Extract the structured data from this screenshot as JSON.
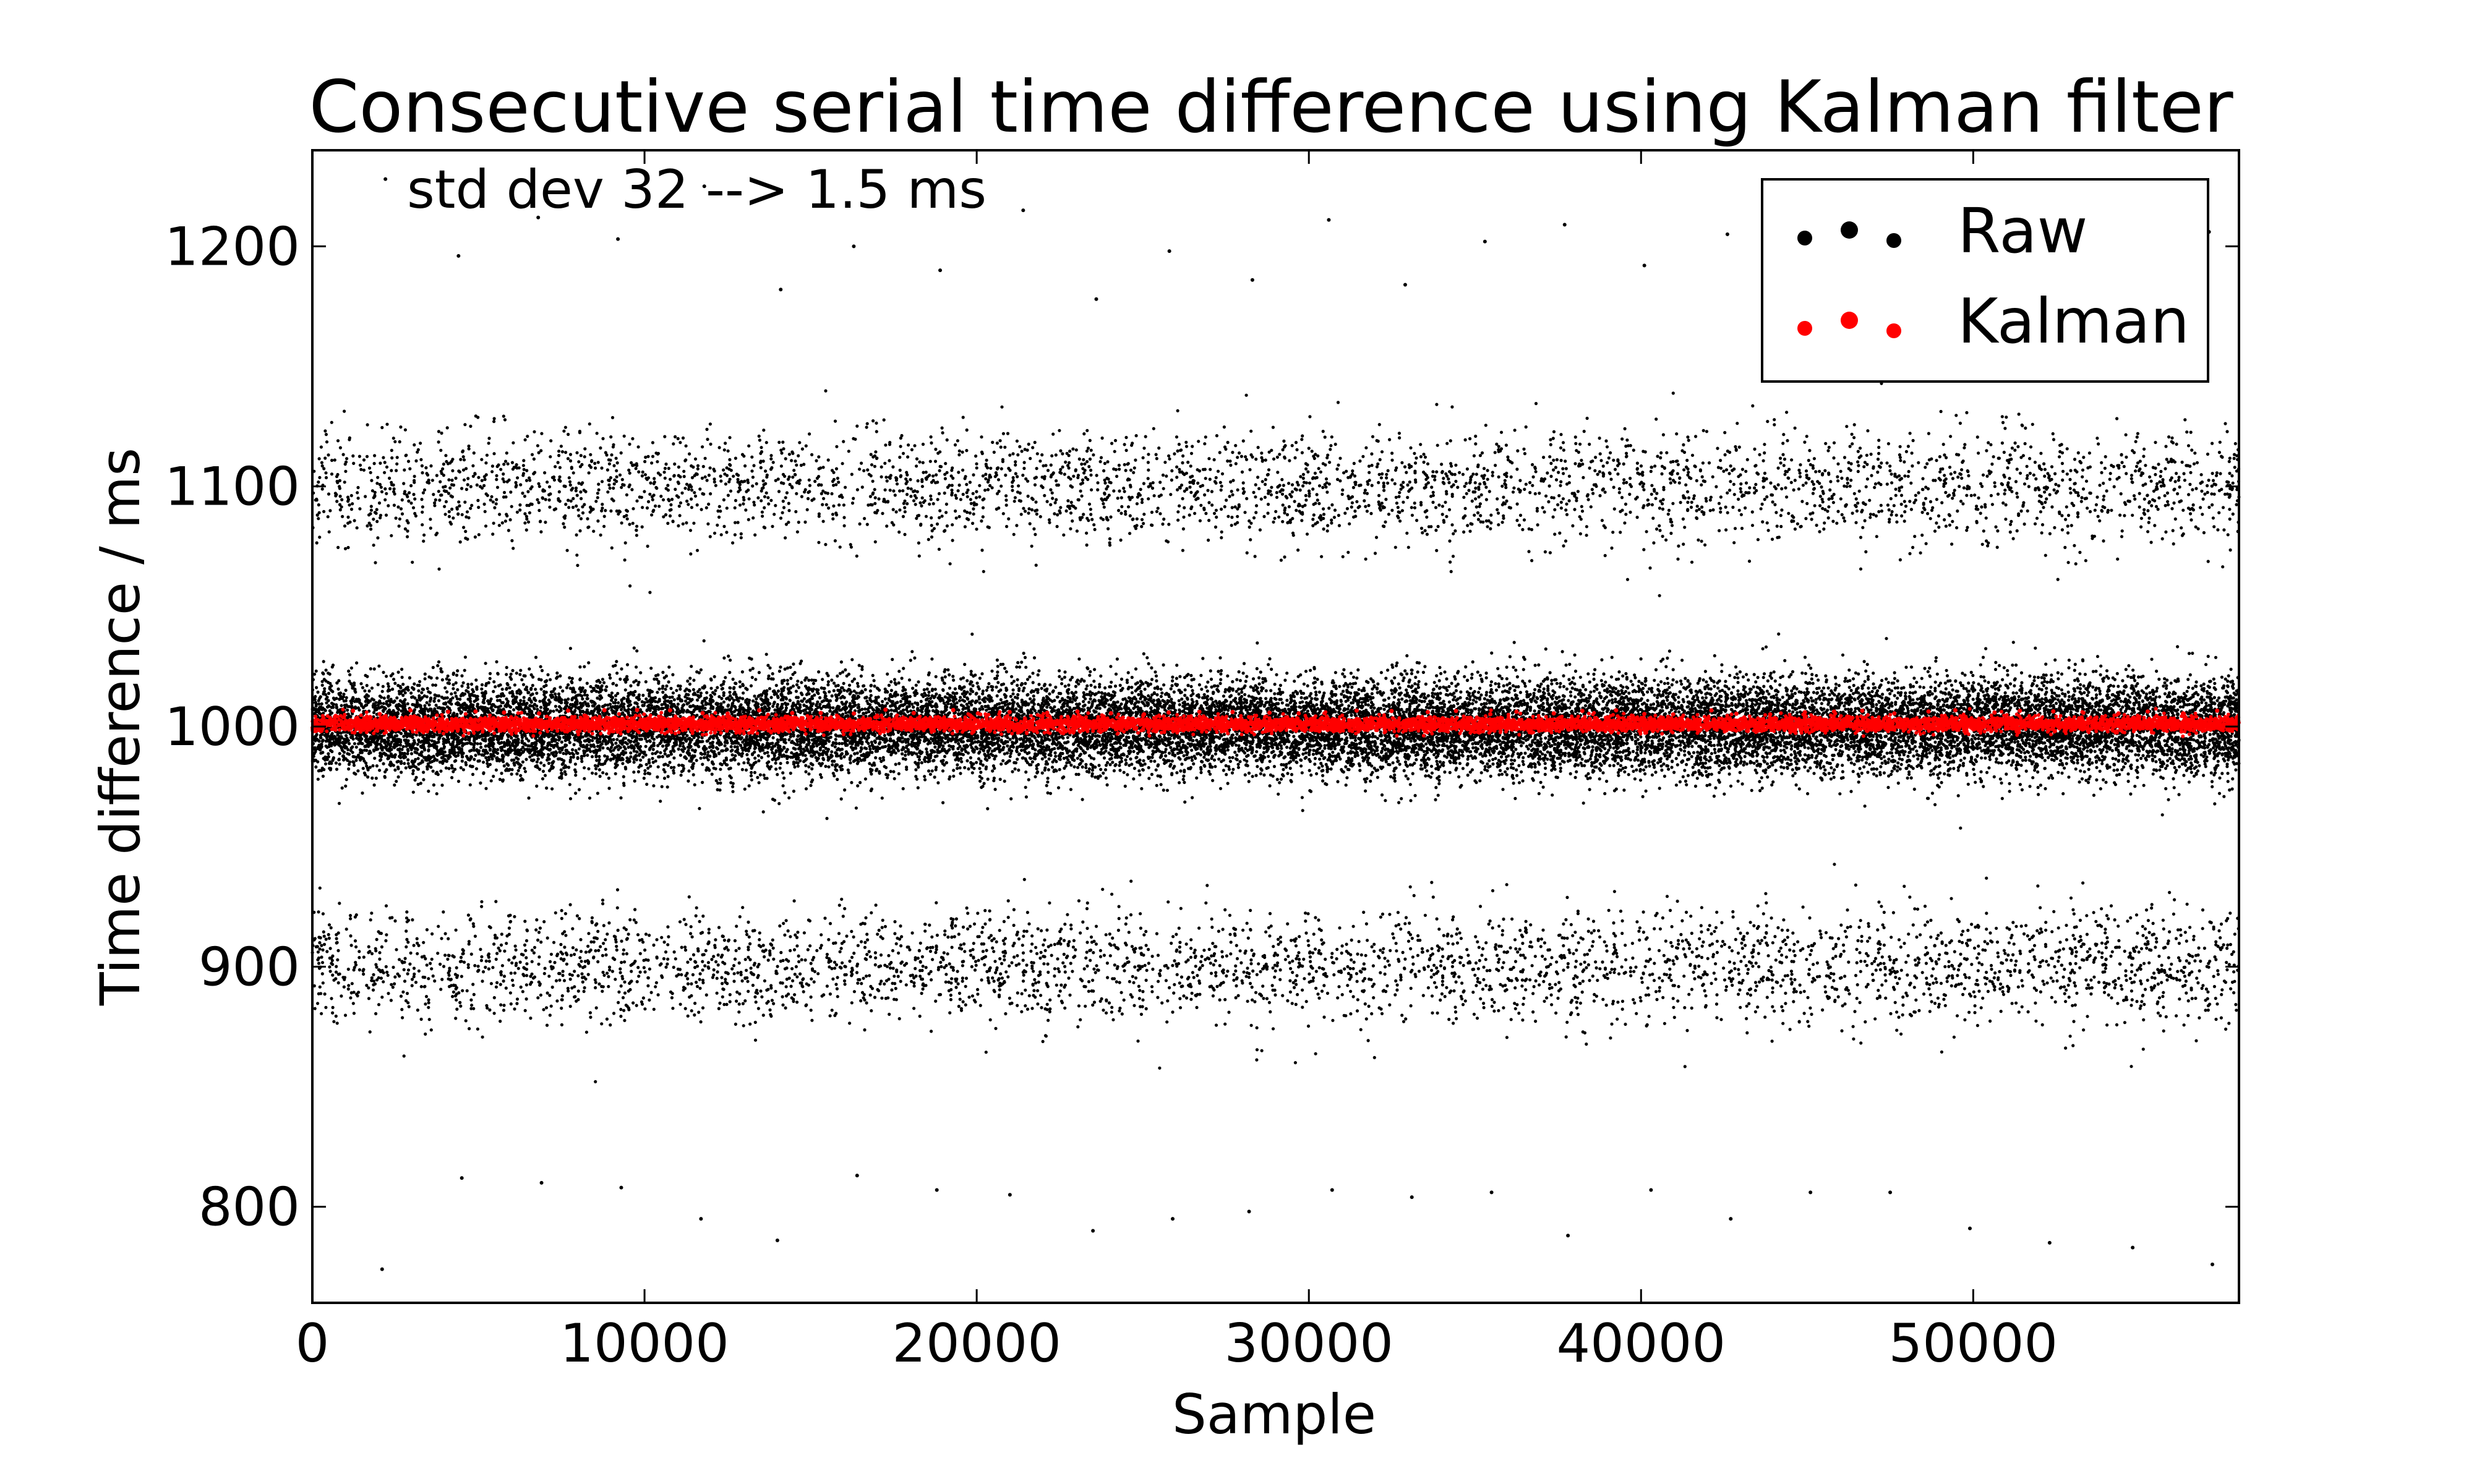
{
  "chart_data": {
    "type": "scatter",
    "title": "Consecutive serial time difference using Kalman filter",
    "xlabel": "Sample",
    "ylabel": "Time difference / ms",
    "xlim": [
      0,
      58000
    ],
    "ylim": [
      760,
      1240
    ],
    "xticks": [
      0,
      10000,
      20000,
      30000,
      40000,
      50000
    ],
    "yticks": [
      800,
      900,
      1000,
      1100,
      1200
    ],
    "xtick_labels": [
      "0",
      "10000",
      "20000",
      "30000",
      "40000",
      "50000"
    ],
    "ytick_labels": [
      "800",
      "900",
      "1000",
      "1100",
      "1200"
    ],
    "grid": false,
    "legend_position": "top-right",
    "annotation": "std dev 32 --> 1.5 ms",
    "series": [
      {
        "name": "Raw",
        "color": "#000000",
        "n_samples": 58000,
        "clusters": [
          {
            "center": 1000,
            "spread": 10,
            "share": 0.86
          },
          {
            "center": 1100,
            "spread": 12,
            "share": 0.065
          },
          {
            "center": 900,
            "spread": 12,
            "share": 0.065
          }
        ],
        "outliers": [
          {
            "x": 2200,
            "y": 1228
          },
          {
            "x": 4400,
            "y": 1196
          },
          {
            "x": 6800,
            "y": 1212
          },
          {
            "x": 9200,
            "y": 1203
          },
          {
            "x": 11800,
            "y": 1225
          },
          {
            "x": 14100,
            "y": 1182
          },
          {
            "x": 16300,
            "y": 1200
          },
          {
            "x": 18900,
            "y": 1190
          },
          {
            "x": 21400,
            "y": 1215
          },
          {
            "x": 23600,
            "y": 1178
          },
          {
            "x": 25800,
            "y": 1198
          },
          {
            "x": 28300,
            "y": 1186
          },
          {
            "x": 30600,
            "y": 1211
          },
          {
            "x": 32900,
            "y": 1184
          },
          {
            "x": 35300,
            "y": 1202
          },
          {
            "x": 37700,
            "y": 1209
          },
          {
            "x": 40100,
            "y": 1192
          },
          {
            "x": 42600,
            "y": 1205
          },
          {
            "x": 44900,
            "y": 1218
          },
          {
            "x": 47300,
            "y": 1194
          },
          {
            "x": 49800,
            "y": 1214
          },
          {
            "x": 52100,
            "y": 1188
          },
          {
            "x": 54700,
            "y": 1201
          },
          {
            "x": 57100,
            "y": 1206
          },
          {
            "x": 2100,
            "y": 774
          },
          {
            "x": 4500,
            "y": 812
          },
          {
            "x": 6900,
            "y": 810
          },
          {
            "x": 9300,
            "y": 808
          },
          {
            "x": 11700,
            "y": 795
          },
          {
            "x": 14000,
            "y": 786
          },
          {
            "x": 16400,
            "y": 813
          },
          {
            "x": 18800,
            "y": 807
          },
          {
            "x": 21000,
            "y": 805
          },
          {
            "x": 23500,
            "y": 790
          },
          {
            "x": 25900,
            "y": 795
          },
          {
            "x": 28200,
            "y": 798
          },
          {
            "x": 30700,
            "y": 807
          },
          {
            "x": 33100,
            "y": 804
          },
          {
            "x": 35500,
            "y": 806
          },
          {
            "x": 37800,
            "y": 788
          },
          {
            "x": 40300,
            "y": 807
          },
          {
            "x": 42700,
            "y": 795
          },
          {
            "x": 45100,
            "y": 806
          },
          {
            "x": 47500,
            "y": 806
          },
          {
            "x": 49900,
            "y": 791
          },
          {
            "x": 52300,
            "y": 785
          },
          {
            "x": 54800,
            "y": 783
          },
          {
            "x": 57200,
            "y": 776
          }
        ]
      },
      {
        "name": "Kalman",
        "color": "#ff0000",
        "n_samples": 58000,
        "center": 1001,
        "spread": 1.5
      }
    ]
  }
}
